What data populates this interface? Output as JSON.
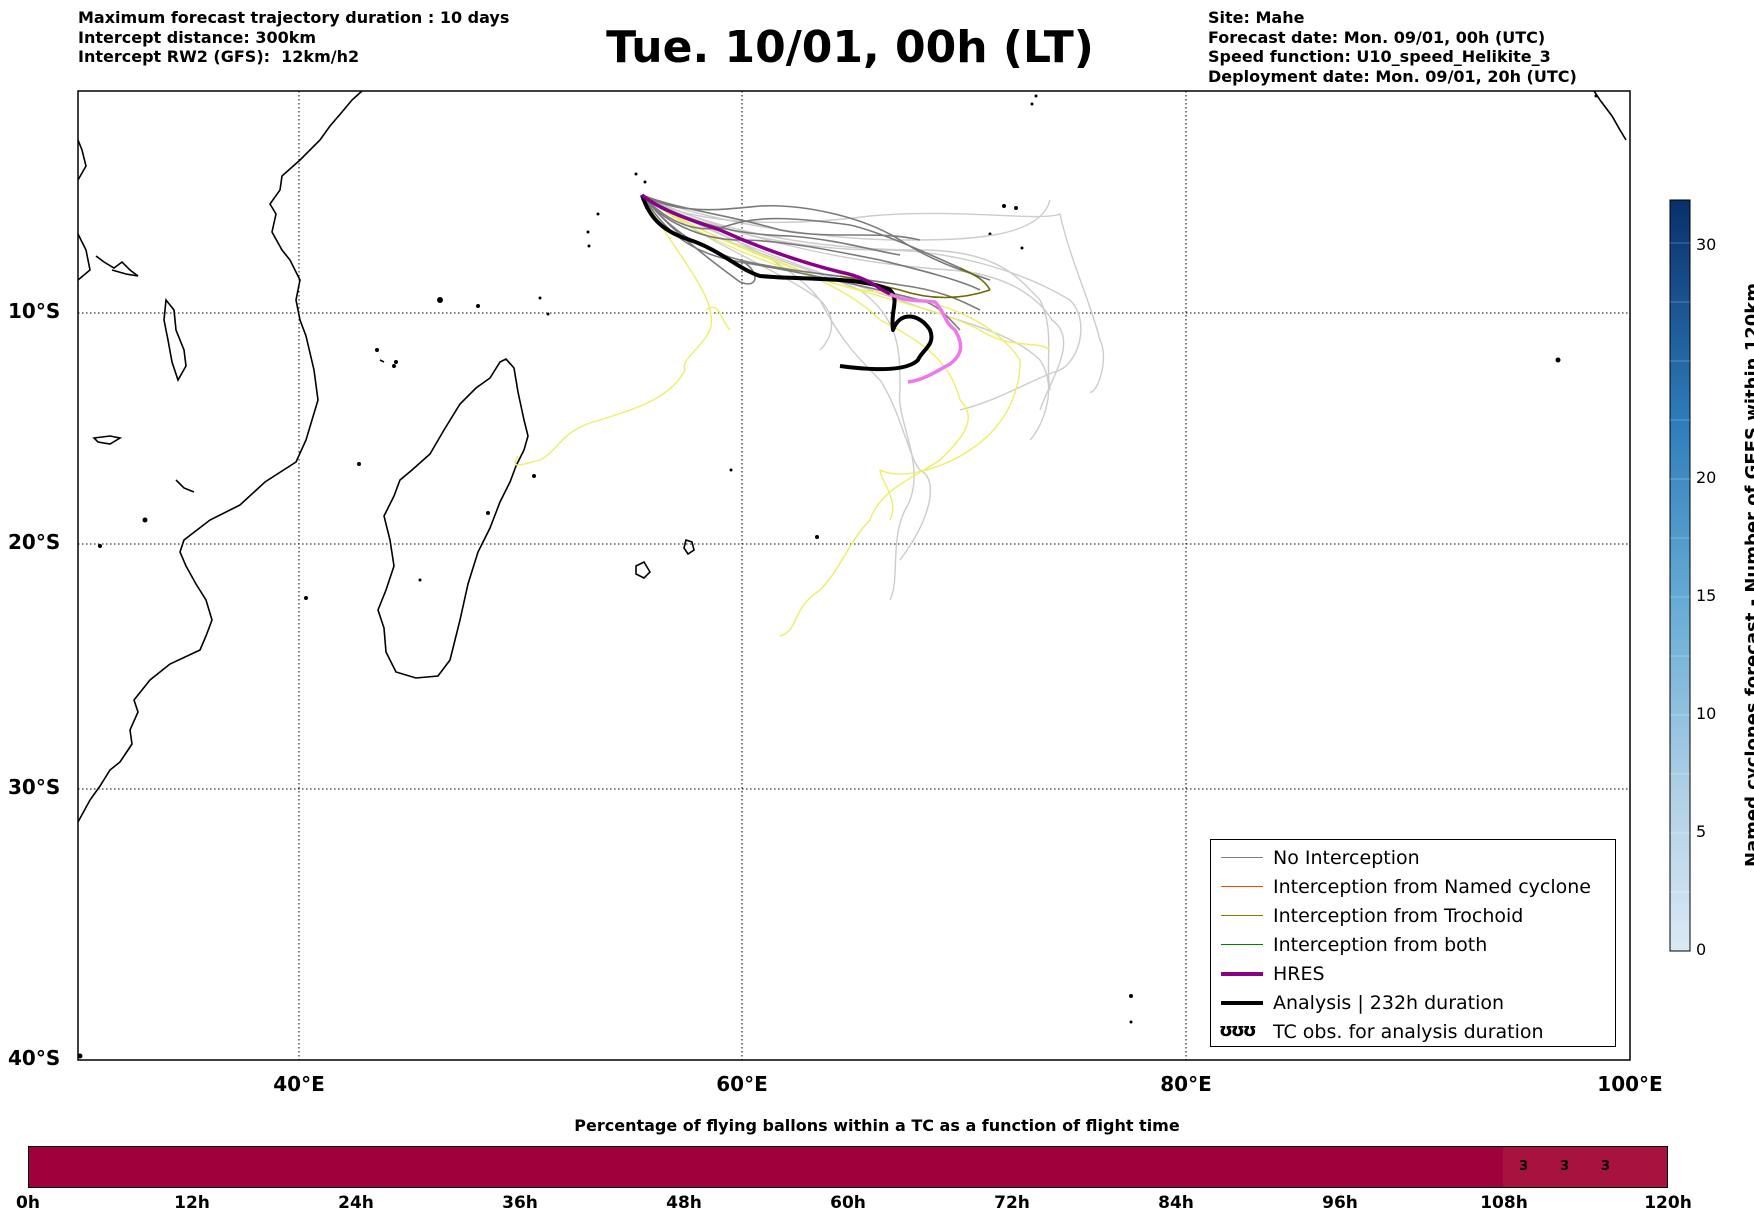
{
  "header_left": [
    "Maximum forecast trajectory duration : 10 days",
    "Intercept distance: 300km",
    "Intercept RW2 (GFS):  12km/h2"
  ],
  "header_right": [
    "Site: Mahe",
    "Forecast date: Mon. 09/01, 00h (UTC)",
    "Speed function: U10_speed_Helikite_3",
    "Deployment date: Mon. 09/01, 20h (UTC)"
  ],
  "title": "Tue. 10/01, 00h (LT)",
  "map": {
    "lat_labels": [
      "10°S",
      "20°S",
      "30°S",
      "40°S"
    ],
    "lon_labels": [
      "40°E",
      "60°E",
      "80°E",
      "100°E"
    ],
    "lon_range": [
      30,
      100
    ],
    "lat_range": [
      -40,
      0
    ]
  },
  "legend": {
    "items": [
      {
        "label": "No Interception",
        "color": "#808080"
      },
      {
        "label": "Interception from Named cyclone",
        "color": "#ff4500"
      },
      {
        "label": "Interception from Trochoid",
        "color": "#808000"
      },
      {
        "label": "Interception from both",
        "color": "#008000"
      },
      {
        "label": "HRES",
        "color": "#8b008b"
      },
      {
        "label": "Analysis | 232h duration",
        "color": "#000000"
      },
      {
        "label": "TC obs. for analysis duration",
        "symbol": "ʊʊʊ"
      }
    ]
  },
  "colorbar": {
    "label": "Named cyclones forecast - Number of GEFS within 120km",
    "ticks": [
      "0",
      "5",
      "10",
      "15",
      "20",
      "30"
    ]
  },
  "bottom": {
    "title": "Percentage of flying ballons within a TC as a function of flight time",
    "ticks": [
      "0h",
      "12h",
      "24h",
      "36h",
      "48h",
      "60h",
      "72h",
      "84h",
      "96h",
      "108h",
      "120h"
    ],
    "segments": [
      {
        "fraction": 0.9,
        "label": "",
        "color": "#a0003c"
      },
      {
        "fraction": 0.025,
        "label": "3",
        "color": "#a8123f"
      },
      {
        "fraction": 0.025,
        "label": "3",
        "color": "#a8123f"
      },
      {
        "fraction": 0.025,
        "label": "3",
        "color": "#a8123f"
      },
      {
        "fraction": 0.025,
        "label": "",
        "color": "#a8123f"
      }
    ]
  }
}
